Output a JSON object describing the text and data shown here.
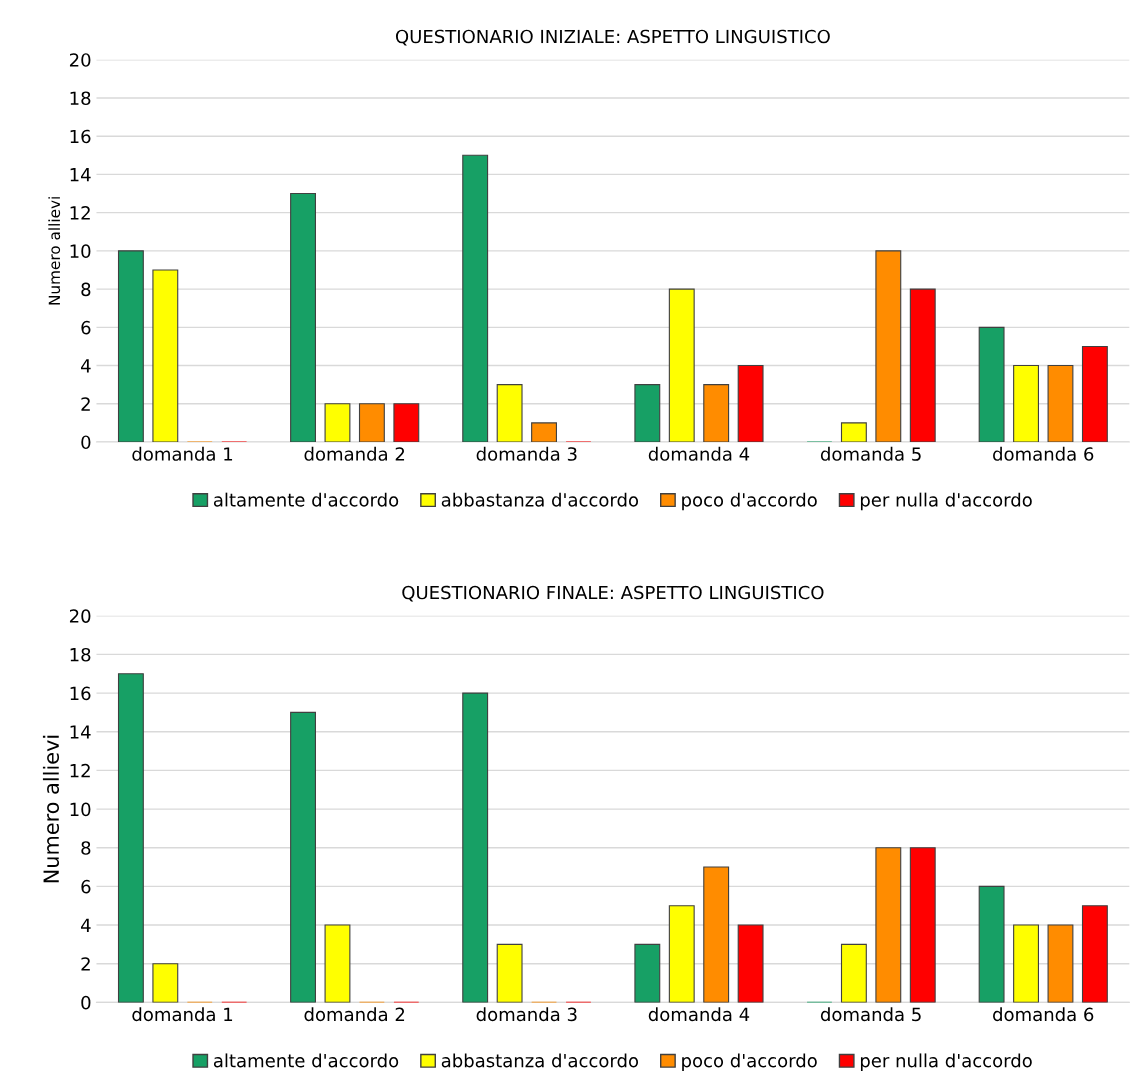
{
  "chart_data": [
    {
      "type": "bar",
      "title": "QUESTIONARIO INIZIALE: ASPETTO LINGUISTICO",
      "ylabel": "Numero allievi",
      "categories": [
        "domanda 1",
        "domanda 2",
        "domanda 3",
        "domanda 4",
        "domanda 5",
        "domanda 6"
      ],
      "series": [
        {
          "name": "altamente d'accordo",
          "color": "#17a065",
          "values": [
            10,
            13,
            15,
            3,
            0,
            6
          ]
        },
        {
          "name": "abbastanza d'accordo",
          "color": "#ffff00",
          "values": [
            9,
            2,
            3,
            8,
            1,
            4
          ]
        },
        {
          "name": "poco d'accordo",
          "color": "#ff8c00",
          "values": [
            0,
            2,
            1,
            3,
            10,
            4
          ]
        },
        {
          "name": "per nulla d'accordo",
          "color": "#ff0000",
          "values": [
            0,
            2,
            0,
            4,
            8,
            5
          ]
        }
      ],
      "ylim": [
        0,
        20
      ],
      "yticks": [
        0,
        2,
        4,
        6,
        8,
        10,
        12,
        14,
        16,
        18,
        20
      ],
      "grid": "y",
      "legend": "bottom"
    },
    {
      "type": "bar",
      "title": "QUESTIONARIO FINALE: ASPETTO LINGUISTICO",
      "ylabel": "Numero allievi",
      "categories": [
        "domanda 1",
        "domanda 2",
        "domanda 3",
        "domanda 4",
        "domanda 5",
        "domanda 6"
      ],
      "series": [
        {
          "name": "altamente d'accordo",
          "color": "#17a065",
          "values": [
            17,
            15,
            16,
            3,
            0,
            6
          ]
        },
        {
          "name": "abbastanza d'accordo",
          "color": "#ffff00",
          "values": [
            2,
            4,
            3,
            5,
            3,
            4
          ]
        },
        {
          "name": "poco d'accordo",
          "color": "#ff8c00",
          "values": [
            0,
            0,
            0,
            7,
            8,
            4
          ]
        },
        {
          "name": "per nulla d'accordo",
          "color": "#ff0000",
          "values": [
            0,
            0,
            0,
            4,
            8,
            5
          ]
        }
      ],
      "ylim": [
        0,
        20
      ],
      "yticks": [
        0,
        2,
        4,
        6,
        8,
        10,
        12,
        14,
        16,
        18,
        20
      ],
      "grid": "y",
      "legend": "bottom"
    }
  ]
}
